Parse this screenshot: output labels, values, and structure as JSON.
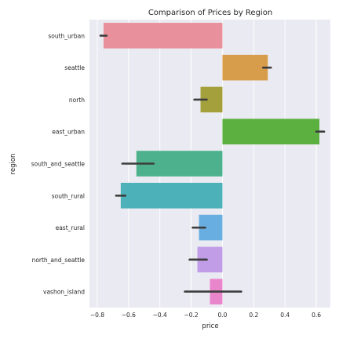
{
  "chart_data": {
    "type": "bar",
    "orientation": "horizontal",
    "title": "Comparison of Prices by Region",
    "xlabel": "price",
    "ylabel": "region",
    "categories": [
      "south_urban",
      "seattle",
      "north",
      "east_urban",
      "south_and_seattle",
      "south_rural",
      "east_rural",
      "north_and_seattle",
      "vashon_island"
    ],
    "values": [
      -0.76,
      0.29,
      -0.14,
      0.62,
      -0.55,
      -0.65,
      -0.15,
      -0.16,
      -0.08
    ],
    "error_low": [
      -0.78,
      0.26,
      -0.18,
      0.6,
      -0.64,
      -0.68,
      -0.19,
      -0.21,
      -0.24
    ],
    "error_high": [
      -0.74,
      0.31,
      -0.1,
      0.65,
      -0.44,
      -0.62,
      -0.11,
      -0.1,
      0.12
    ],
    "colors": [
      "#e8919c",
      "#d89d4a",
      "#a4a13c",
      "#5cb040",
      "#4db18d",
      "#4cb1b8",
      "#69aee1",
      "#c19de8",
      "#e986cb"
    ],
    "xticks": [
      -0.8,
      -0.6,
      -0.4,
      -0.2,
      0.0,
      0.2,
      0.4,
      0.6
    ],
    "xtick_labels": [
      "−0.8",
      "−0.6",
      "−0.4",
      "−0.2",
      "0.0",
      "0.2",
      "0.4",
      "0.6"
    ],
    "xlim": [
      -0.85,
      0.69
    ],
    "grid": true,
    "background": "#eaeaf2",
    "errorbar_color": "#3d3d3d"
  }
}
